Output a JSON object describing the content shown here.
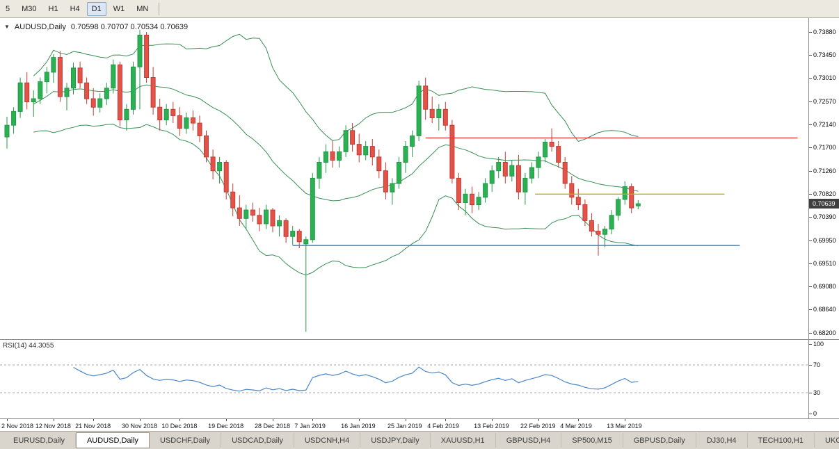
{
  "toolbar": {
    "timeframes": [
      {
        "label": "5",
        "active": false
      },
      {
        "label": "M30",
        "active": false
      },
      {
        "label": "H1",
        "active": false
      },
      {
        "label": "H4",
        "active": false
      },
      {
        "label": "D1",
        "active": true
      },
      {
        "label": "W1",
        "active": false
      },
      {
        "label": "MN",
        "active": false
      }
    ]
  },
  "chart": {
    "symbol_label": "AUDUSD,Daily",
    "ohlc_label": "0.70598 0.70707 0.70534 0.70639",
    "current_price": "0.70639",
    "expand_icon": "▼",
    "price_axis_labels": [
      "0.73880",
      "0.73450",
      "0.73010",
      "0.72570",
      "0.72140",
      "0.71700",
      "0.71260",
      "0.70820",
      "0.70390",
      "0.69950",
      "0.69510",
      "0.69080",
      "0.68640",
      "0.68200"
    ],
    "date_axis": [
      {
        "index": 0,
        "label": "2 Nov 2018"
      },
      {
        "index": 7,
        "label": "12 Nov 2018"
      },
      {
        "index": 13,
        "label": "21 Nov 2018"
      },
      {
        "index": 20,
        "label": "30 Nov 2018"
      },
      {
        "index": 26,
        "label": "10 Dec 2018"
      },
      {
        "index": 33,
        "label": "19 Dec 2018"
      },
      {
        "index": 40,
        "label": "28 Dec 2018"
      },
      {
        "index": 46,
        "label": "7 Jan 2019"
      },
      {
        "index": 53,
        "label": "16 Jan 2019"
      },
      {
        "index": 60,
        "label": "25 Jan 2019"
      },
      {
        "index": 66,
        "label": "4 Feb 2019"
      },
      {
        "index": 73,
        "label": "13 Feb 2019"
      },
      {
        "index": 80,
        "label": "22 Feb 2019"
      },
      {
        "index": 86,
        "label": "4 Mar 2019"
      },
      {
        "index": 93,
        "label": "13 Mar 2019"
      }
    ],
    "h_lines": [
      {
        "name": "resistance-line",
        "price": 0.7188,
        "start": 63,
        "end": 119,
        "color": "#e23b3b"
      },
      {
        "name": "pivot-line",
        "price": 0.7082,
        "start": 79.5,
        "end": 108,
        "color": "#b8b400"
      },
      {
        "name": "support-line",
        "price": 0.6985,
        "start": 43,
        "end": 110.3,
        "color": "#2e86c1"
      }
    ],
    "colors": {
      "bull": "#2db053",
      "bull_border": "#1f9a45",
      "bear": "#e2544a",
      "bear_border": "#c53b32",
      "bollinger": "#388e54",
      "rsi_line": "#4a86c8",
      "price_badge_bg": "#3f3f3f"
    }
  },
  "chart_data": {
    "type": "candlestick",
    "symbol": "AUDUSD",
    "timeframe": "Daily",
    "ylim": [
      0.68082,
      0.74142
    ],
    "bollinger": {
      "period": 20,
      "deviation": 2
    },
    "rsi": {
      "period": 14,
      "value": 44.3055
    },
    "candles": [
      [
        0.719,
        0.7228,
        0.7168,
        0.7212
      ],
      [
        0.7212,
        0.7246,
        0.7196,
        0.7238
      ],
      [
        0.7238,
        0.7302,
        0.7226,
        0.7292
      ],
      [
        0.7292,
        0.7312,
        0.7242,
        0.7256
      ],
      [
        0.7256,
        0.7278,
        0.7228,
        0.7262
      ],
      [
        0.7262,
        0.7302,
        0.7252,
        0.7294
      ],
      [
        0.7294,
        0.7322,
        0.7272,
        0.7312
      ],
      [
        0.7312,
        0.7346,
        0.7292,
        0.734
      ],
      [
        0.734,
        0.7352,
        0.7256,
        0.7266
      ],
      [
        0.7266,
        0.7292,
        0.724,
        0.7282
      ],
      [
        0.7282,
        0.733,
        0.727,
        0.732
      ],
      [
        0.732,
        0.7332,
        0.7282,
        0.7292
      ],
      [
        0.7292,
        0.7302,
        0.7252,
        0.7262
      ],
      [
        0.7262,
        0.7282,
        0.723,
        0.7246
      ],
      [
        0.7246,
        0.7272,
        0.7236,
        0.7262
      ],
      [
        0.7262,
        0.7292,
        0.725,
        0.7282
      ],
      [
        0.7282,
        0.7336,
        0.7272,
        0.7326
      ],
      [
        0.7326,
        0.7332,
        0.721,
        0.7222
      ],
      [
        0.7222,
        0.7252,
        0.7202,
        0.7242
      ],
      [
        0.7242,
        0.7332,
        0.7232,
        0.7322
      ],
      [
        0.7322,
        0.7392,
        0.7242,
        0.7382
      ],
      [
        0.7382,
        0.7388,
        0.7292,
        0.7302
      ],
      [
        0.7302,
        0.7322,
        0.7232,
        0.7246
      ],
      [
        0.7246,
        0.7262,
        0.7202,
        0.7222
      ],
      [
        0.7222,
        0.7252,
        0.7212,
        0.7242
      ],
      [
        0.7242,
        0.7256,
        0.7216,
        0.723
      ],
      [
        0.723,
        0.7246,
        0.7192,
        0.7206
      ],
      [
        0.7206,
        0.7236,
        0.7196,
        0.7226
      ],
      [
        0.7226,
        0.724,
        0.7202,
        0.7216
      ],
      [
        0.7216,
        0.723,
        0.718,
        0.7192
      ],
      [
        0.7192,
        0.7202,
        0.7142,
        0.7152
      ],
      [
        0.7152,
        0.7166,
        0.711,
        0.7126
      ],
      [
        0.7126,
        0.7152,
        0.7102,
        0.7142
      ],
      [
        0.7142,
        0.7146,
        0.7072,
        0.7086
      ],
      [
        0.7086,
        0.7102,
        0.704,
        0.7056
      ],
      [
        0.7056,
        0.708,
        0.7022,
        0.7036
      ],
      [
        0.7036,
        0.7062,
        0.7016,
        0.7052
      ],
      [
        0.7052,
        0.7066,
        0.703,
        0.7042
      ],
      [
        0.7042,
        0.7056,
        0.7012,
        0.7026
      ],
      [
        0.7026,
        0.7062,
        0.7016,
        0.7052
      ],
      [
        0.7052,
        0.7056,
        0.701,
        0.7022
      ],
      [
        0.7022,
        0.7042,
        0.7002,
        0.7032
      ],
      [
        0.7032,
        0.7036,
        0.699,
        0.7002
      ],
      [
        0.7002,
        0.7022,
        0.6986,
        0.7012
      ],
      [
        0.7012,
        0.7016,
        0.698,
        0.6992
      ],
      [
        0.6988,
        0.7002,
        0.6822,
        0.6996
      ],
      [
        0.6996,
        0.7122,
        0.699,
        0.7112
      ],
      [
        0.7112,
        0.7152,
        0.7092,
        0.7142
      ],
      [
        0.7142,
        0.7176,
        0.7122,
        0.7162
      ],
      [
        0.7162,
        0.7182,
        0.7132,
        0.7146
      ],
      [
        0.7146,
        0.7172,
        0.7132,
        0.7162
      ],
      [
        0.7162,
        0.7212,
        0.7152,
        0.7202
      ],
      [
        0.7202,
        0.7216,
        0.7162,
        0.7176
      ],
      [
        0.7176,
        0.7196,
        0.7142,
        0.7156
      ],
      [
        0.7156,
        0.7182,
        0.7146,
        0.7172
      ],
      [
        0.7172,
        0.7186,
        0.7136,
        0.7152
      ],
      [
        0.7152,
        0.7166,
        0.7112,
        0.7126
      ],
      [
        0.7126,
        0.7142,
        0.7072,
        0.7086
      ],
      [
        0.7086,
        0.7112,
        0.7062,
        0.7102
      ],
      [
        0.7102,
        0.7152,
        0.7092,
        0.7142
      ],
      [
        0.7142,
        0.7182,
        0.7122,
        0.7172
      ],
      [
        0.7172,
        0.7202,
        0.7152,
        0.7192
      ],
      [
        0.7192,
        0.7296,
        0.7182,
        0.7286
      ],
      [
        0.7286,
        0.7302,
        0.7222,
        0.7242
      ],
      [
        0.7242,
        0.7266,
        0.7216,
        0.7226
      ],
      [
        0.7226,
        0.7252,
        0.7202,
        0.7242
      ],
      [
        0.7242,
        0.7256,
        0.7202,
        0.7212
      ],
      [
        0.7212,
        0.7222,
        0.7102,
        0.7112
      ],
      [
        0.7112,
        0.7122,
        0.7052,
        0.7066
      ],
      [
        0.7066,
        0.7092,
        0.7042,
        0.7082
      ],
      [
        0.7082,
        0.7096,
        0.7046,
        0.7062
      ],
      [
        0.7062,
        0.7086,
        0.7052,
        0.7076
      ],
      [
        0.7076,
        0.7112,
        0.7066,
        0.7102
      ],
      [
        0.7102,
        0.7136,
        0.7086,
        0.7126
      ],
      [
        0.7126,
        0.7152,
        0.7112,
        0.7142
      ],
      [
        0.7142,
        0.7162,
        0.7102,
        0.7116
      ],
      [
        0.7116,
        0.7146,
        0.7106,
        0.7136
      ],
      [
        0.7136,
        0.7156,
        0.7072,
        0.7086
      ],
      [
        0.7086,
        0.7122,
        0.7062,
        0.7112
      ],
      [
        0.7112,
        0.7142,
        0.7102,
        0.7132
      ],
      [
        0.7132,
        0.7162,
        0.7112,
        0.7152
      ],
      [
        0.7152,
        0.7186,
        0.7142,
        0.718
      ],
      [
        0.718,
        0.7206,
        0.7162,
        0.7172
      ],
      [
        0.7172,
        0.7182,
        0.7132,
        0.7142
      ],
      [
        0.7142,
        0.7152,
        0.7092,
        0.7102
      ],
      [
        0.7102,
        0.7116,
        0.7062,
        0.7076
      ],
      [
        0.7076,
        0.7092,
        0.7052,
        0.7062
      ],
      [
        0.7062,
        0.7072,
        0.7022,
        0.7032
      ],
      [
        0.7032,
        0.7046,
        0.7002,
        0.7012
      ],
      [
        0.7012,
        0.7026,
        0.6966,
        0.7006
      ],
      [
        0.7006,
        0.7022,
        0.6982,
        0.7016
      ],
      [
        0.7016,
        0.7052,
        0.7006,
        0.7042
      ],
      [
        0.7042,
        0.7076,
        0.7032,
        0.7072
      ],
      [
        0.7072,
        0.7106,
        0.7062,
        0.7096
      ],
      [
        0.7096,
        0.7102,
        0.7046,
        0.7056
      ],
      [
        0.70598,
        0.70707,
        0.70534,
        0.70639
      ]
    ]
  },
  "rsi_panel": {
    "label": "RSI(14) 44.3055",
    "axis_labels": [
      "100",
      "70",
      "30",
      "0"
    ],
    "levels": [
      70,
      30
    ]
  },
  "tabs": [
    {
      "label": "EURUSD,Daily",
      "active": false
    },
    {
      "label": "AUDUSD,Daily",
      "active": true
    },
    {
      "label": "USDCHF,Daily",
      "active": false
    },
    {
      "label": "USDCAD,Daily",
      "active": false
    },
    {
      "label": "USDCNH,H4",
      "active": false
    },
    {
      "label": "USDJPY,Daily",
      "active": false
    },
    {
      "label": "XAUUSD,H1",
      "active": false
    },
    {
      "label": "GBPUSD,H4",
      "active": false
    },
    {
      "label": "SP500,M15",
      "active": false
    },
    {
      "label": "GBPUSD,Daily",
      "active": false
    },
    {
      "label": "DJ30,H4",
      "active": false
    },
    {
      "label": "TECH100,H1",
      "active": false
    },
    {
      "label": "UKC",
      "active": false
    }
  ]
}
